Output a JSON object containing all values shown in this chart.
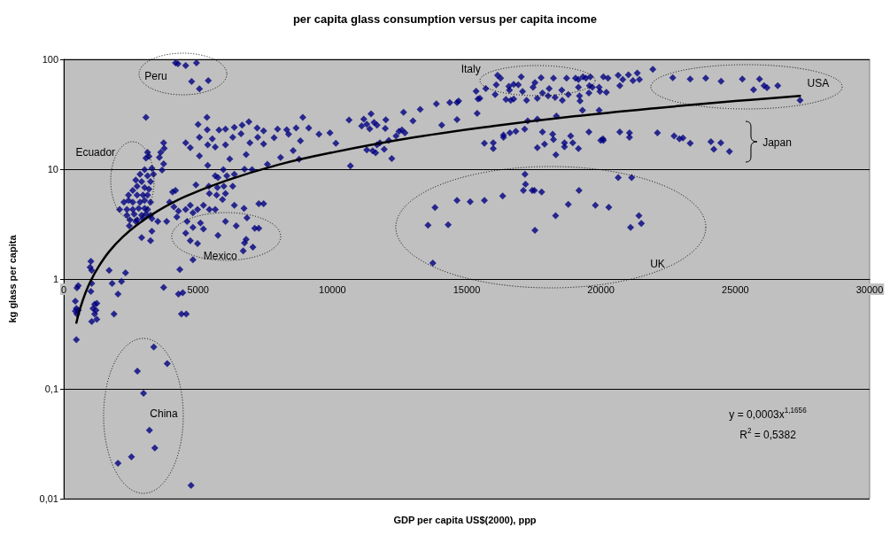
{
  "chart_data": {
    "type": "scatter",
    "title": "per capita glass consumption versus per capita income",
    "xlabel": "GDP per capita US$(2000), ppp",
    "ylabel": "kg glass per capita",
    "xlim": [
      0,
      30000
    ],
    "xticks": [
      0,
      5000,
      10000,
      15000,
      20000,
      25000,
      30000
    ],
    "ylim": [
      0.01,
      100
    ],
    "yticks": [
      {
        "value": 0.01,
        "label": "0,01"
      },
      {
        "value": 0.1,
        "label": "0,1"
      },
      1,
      10,
      100
    ],
    "log": "y",
    "grid": "y",
    "marker": "diamond",
    "annotations": [
      "Peru",
      "Ecuador",
      "Mexico",
      "China",
      "Italy",
      "USA",
      "Japan",
      "UK",
      "y = 0,0003x$^{1,1656}$",
      "R$^{2}$ = 0,5382"
    ],
    "series": [
      {
        "color": "#000080",
        "x": [
          4160,
          4250,
          4540,
          4940,
          4760,
          5380,
          5050,
          3060,
          5330,
          5000,
          5340,
          5050,
          5780,
          6020,
          6350,
          6640,
          6890,
          7200,
          7440,
          5530,
          5360,
          5640,
          6020,
          6290,
          6600,
          6930,
          7220,
          7440,
          7830,
          7960,
          8300,
          8650,
          8900,
          9120,
          8370,
          8810,
          9500,
          9910,
          10130,
          4540,
          4710,
          5050,
          6180,
          6790,
          7580,
          8070,
          8540,
          8760,
          5360,
          5940,
          5640,
          5740,
          6070,
          6350,
          6730,
          7010,
          6290,
          5960,
          5400,
          4920,
          5720,
          5420,
          5690,
          5910,
          6020,
          4160,
          4050,
          3940,
          4100,
          4270,
          4540,
          4710,
          4810,
          4980,
          5200,
          5420,
          5640,
          3830,
          4210,
          4590,
          4810,
          5200,
          5090,
          4540,
          4710,
          4980,
          4810,
          4320,
          5740,
          6020,
          6420,
          6710,
          6350,
          6820,
          7260,
          7440,
          7110,
          7260,
          6790,
          6730,
          7040,
          6680,
          3720,
          3740,
          3610,
          3560,
          3720,
          3660,
          3120,
          3170,
          3060,
          3010,
          2840,
          3120,
          3280,
          3340,
          2680,
          2900,
          3230,
          2730,
          3010,
          3170,
          2570,
          2410,
          2730,
          2950,
          3120,
          2410,
          2570,
          2840,
          3010,
          3230,
          2240,
          2080,
          2350,
          2570,
          2790,
          3010,
          3120,
          2350,
          2620,
          2900,
          3060,
          2460,
          2730,
          2950,
          3230,
          3280,
          3500,
          2440,
          2680,
          2900,
          3230,
          3280,
          1010,
          980,
          1040,
          1690,
          2300,
          1800,
          2150,
          3720,
          540,
          490,
          430,
          470,
          430,
          490,
          540,
          470,
          1040,
          1010,
          1150,
          1230,
          1090,
          1200,
          1150,
          1230,
          1040,
          2020,
          1870,
          4270,
          4430,
          4380,
          4560,
          3350,
          3850,
          2740,
          2970,
          3190,
          3390,
          2520,
          2020,
          4740,
          10620,
          11170,
          11090,
          11280,
          11550,
          11660,
          11390,
          11990,
          11970,
          11440,
          12650,
          13000,
          13270,
          13870,
          14370,
          14700,
          14640,
          14070,
          14640,
          12480,
          12590,
          12370,
          12700,
          12100,
          11770,
          11660,
          11610,
          11280,
          11500,
          11930,
          12210,
          10670,
          15350,
          15490,
          15420,
          15710,
          15390,
          16150,
          16260,
          16100,
          16060,
          16570,
          16750,
          16920,
          17030,
          17080,
          16590,
          16460,
          16640,
          16750,
          17230,
          17470,
          17540,
          17770,
          17820,
          17630,
          18070,
          18030,
          18230,
          18290,
          18560,
          18540,
          18720,
          18780,
          19050,
          19160,
          19160,
          19200,
          19220,
          19330,
          19440,
          19600,
          19570,
          19550,
          19680,
          19930,
          19960,
          20090,
          20260,
          20200,
          15660,
          15990,
          15990,
          16370,
          16370,
          16610,
          16830,
          17160,
          17270,
          17630,
          17630,
          17820,
          17900,
          18200,
          18230,
          18320,
          18640,
          18640,
          18870,
          18950,
          19160,
          19310,
          19550,
          19930,
          19990,
          20070,
          18340,
          17170,
          17190,
          17110,
          17440,
          17520,
          17790,
          19180,
          16340,
          15660,
          15130,
          14640,
          13820,
          13560,
          14310,
          13740,
          17540,
          18310,
          18780,
          19790,
          20290,
          20640,
          20700,
          20810,
          21020,
          21190,
          21350,
          21430,
          21930,
          22670,
          23320,
          23900,
          24470,
          25260,
          25900,
          25680,
          26070,
          26180,
          26580,
          27410,
          20090,
          20700,
          21060,
          21060,
          22100,
          22720,
          22920,
          23050,
          23320,
          24090,
          24460,
          24200,
          24780,
          20640,
          21140,
          21410,
          21500,
          21100
        ],
        "values": [
          93,
          91,
          88,
          93,
          63,
          64,
          54,
          29.7,
          29.6,
          25.6,
          22.8,
          19.5,
          22.7,
          23.2,
          24,
          25.2,
          27,
          23.7,
          22.3,
          18.9,
          16.7,
          15.9,
          16.7,
          19.5,
          21,
          17.4,
          19.5,
          17,
          19.3,
          23.2,
          22.8,
          23.7,
          29.7,
          23.7,
          20.8,
          18.1,
          20.8,
          21.4,
          17.2,
          17.4,
          15.7,
          13.2,
          12.4,
          13.6,
          11.1,
          12.8,
          14.8,
          12.3,
          10.8,
          9.9,
          8.7,
          8.4,
          8.7,
          9,
          10,
          9.9,
          7,
          7,
          7,
          7.2,
          6.8,
          6,
          5.8,
          5.3,
          6,
          6.4,
          6.2,
          5,
          4.55,
          4.15,
          4.3,
          4.7,
          4,
          4.3,
          4.7,
          4.3,
          4.3,
          3.34,
          3.67,
          3.34,
          2.95,
          2.86,
          3.24,
          2.61,
          2.23,
          2.1,
          1.5,
          1.22,
          2.5,
          3.34,
          3.05,
          4.4,
          4.7,
          3.6,
          4.85,
          4.85,
          2.9,
          2.9,
          2.3,
          2.13,
          1.95,
          1.8,
          17.4,
          15.5,
          14.2,
          12.8,
          11.2,
          9.8,
          14.2,
          13.1,
          12.6,
          9.9,
          9,
          8.7,
          10.2,
          9,
          7.95,
          7.7,
          7.7,
          7,
          6.8,
          6.6,
          6.4,
          5.8,
          5.8,
          5.8,
          5.8,
          5.2,
          5,
          5,
          5.2,
          5,
          5,
          4.3,
          4.3,
          4.3,
          4.4,
          4.4,
          4.3,
          3.8,
          3.9,
          3.8,
          3.9,
          3.45,
          3.45,
          3.55,
          3.8,
          3.55,
          3.34,
          3.05,
          3.34,
          2.38,
          2.23,
          2.72,
          1.45,
          1.28,
          1.2,
          1.2,
          1.14,
          0.91,
          0.95,
          0.84,
          0.87,
          0.83,
          0.63,
          0.54,
          0.51,
          0.48,
          0.52,
          0.28,
          0.91,
          0.77,
          0.59,
          0.6,
          0.54,
          0.52,
          0.48,
          0.43,
          0.41,
          0.73,
          0.48,
          0.73,
          0.75,
          0.48,
          0.48,
          0.24,
          0.17,
          0.145,
          0.091,
          0.042,
          0.029,
          0.024,
          0.021,
          0.0132,
          28,
          28.6,
          24.7,
          25.7,
          26.6,
          25.2,
          23.3,
          28.2,
          23.5,
          31.9,
          32.9,
          27.5,
          35.1,
          39.3,
          40.4,
          41.7,
          40.4,
          25.2,
          28.3,
          22.1,
          22.7,
          20.1,
          21.4,
          18.3,
          17.4,
          16.7,
          14.1,
          15,
          14.7,
          15.2,
          12.5,
          10.7,
          51.2,
          44.2,
          43.6,
          54.2,
          32.2,
          71.5,
          67.4,
          58.6,
          47.8,
          56.7,
          59.3,
          58.6,
          69.4,
          50.9,
          52.4,
          43.1,
          42.3,
          43.6,
          42.3,
          55.8,
          61.4,
          68.1,
          49.4,
          44.2,
          54.2,
          46.5,
          67.4,
          45,
          42.3,
          52.4,
          67.4,
          47.8,
          67.4,
          65.4,
          55.8,
          46.5,
          41.7,
          69.4,
          67.4,
          69.4,
          57.6,
          49.4,
          55.8,
          55.8,
          50.9,
          69.4,
          67.4,
          50,
          17.2,
          17.4,
          15.4,
          20.4,
          19.5,
          21.4,
          22.1,
          23.2,
          27.5,
          28.6,
          15.7,
          21.8,
          16.9,
          20.8,
          18.6,
          13.5,
          17.4,
          16,
          20.1,
          17.4,
          15.4,
          34.4,
          21.8,
          34.4,
          18.3,
          18.9,
          30.4,
          9,
          7.3,
          6.4,
          6.4,
          6.4,
          6.2,
          6.4,
          5.7,
          5.2,
          5.05,
          5.2,
          4.47,
          3.09,
          3.12,
          1.4,
          2.78,
          3.78,
          4.78,
          4.7,
          4.5,
          71.5,
          57.6,
          65.4,
          72.4,
          63.9,
          74.9,
          65.4,
          81,
          68.1,
          66.3,
          67.4,
          63.2,
          66.3,
          66.3,
          53,
          57.6,
          55.1,
          57.6,
          42.3,
          18.3,
          21.8,
          21.4,
          19.5,
          21.4,
          20.1,
          18.9,
          19.2,
          17.2,
          17.8,
          17.4,
          15.2,
          14.5,
          8.4,
          8.4,
          3.78,
          3.2,
          2.95
        ]
      },
      {
        "type": "line",
        "color": "#000000",
        "marker": "none",
        "x": [
          470,
          600,
          800,
          1000,
          1300,
          1700,
          2200,
          2800,
          3500,
          4500,
          6000,
          8000,
          10000,
          13000,
          16000,
          19000,
          22000,
          25000,
          27410
        ],
        "values": [
          0.4,
          0.53,
          0.74,
          0.96,
          1.3,
          1.79,
          2.42,
          3.21,
          4.17,
          5.6,
          7.8,
          11,
          14.2,
          19.4,
          24.7,
          30.3,
          35.9,
          41.7,
          46.5
        ]
      }
    ]
  }
}
